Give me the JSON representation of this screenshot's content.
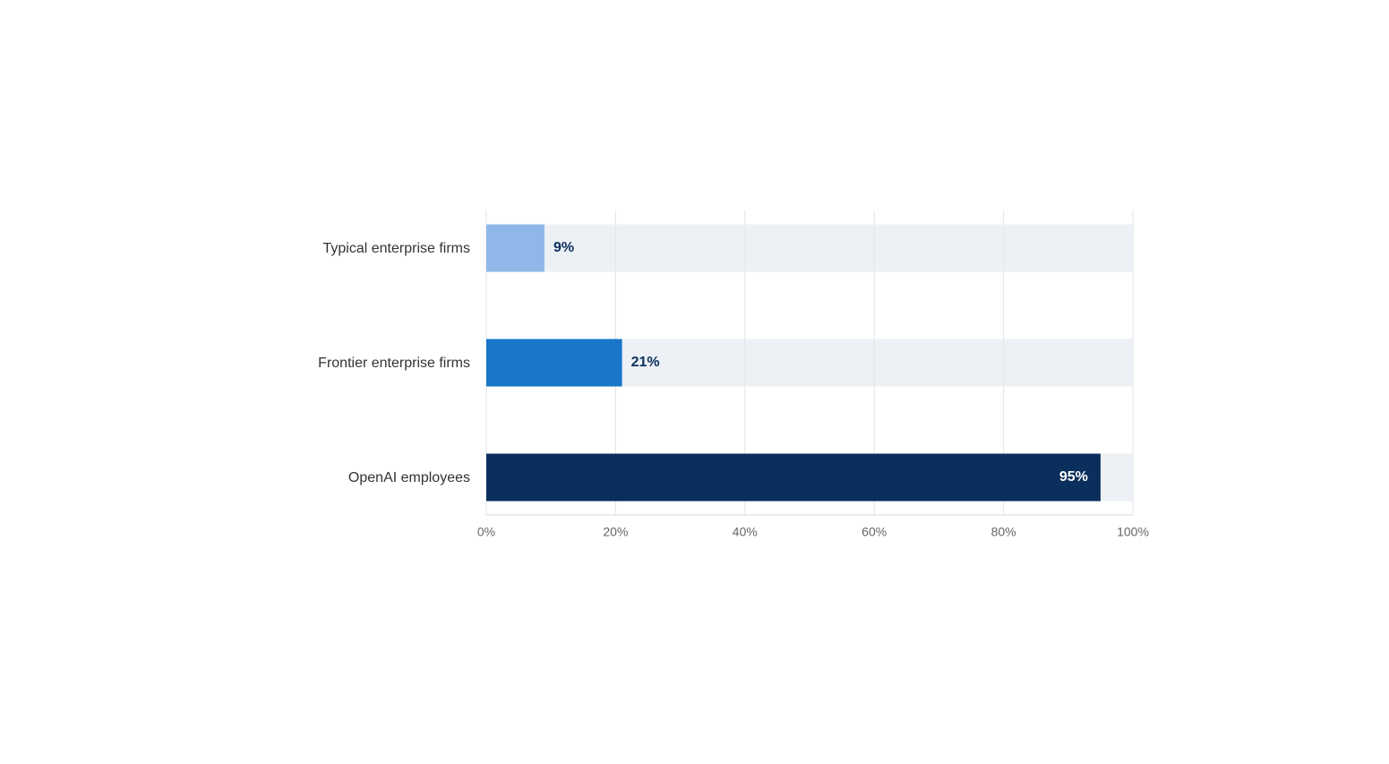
{
  "chart_data": {
    "type": "bar",
    "categories": [
      "Typical enterprise firms",
      "Frontier enterprise firms",
      "OpenAI employees"
    ],
    "values": [
      9,
      21,
      95
    ],
    "value_labels": [
      "9%",
      "21%",
      "95%"
    ],
    "colors": [
      "#8fb8e8",
      "#1976c9",
      "#0b2f5c"
    ],
    "xlim": [
      0,
      100
    ],
    "xticks": [
      {
        "value": 0,
        "label": "0%"
      },
      {
        "value": 20,
        "label": "20%"
      },
      {
        "value": 40,
        "label": "40%"
      },
      {
        "value": 60,
        "label": "60%"
      },
      {
        "value": 80,
        "label": "80%"
      },
      {
        "value": 100,
        "label": "100%"
      }
    ],
    "grid": true
  }
}
